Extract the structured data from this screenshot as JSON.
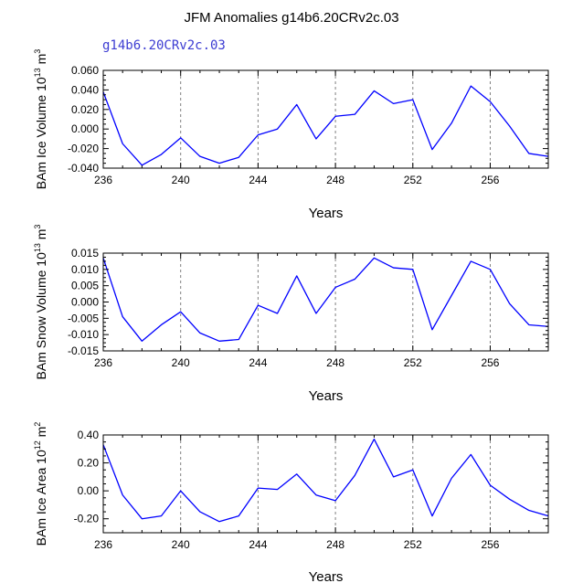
{
  "title": "JFM Anomalies g14b6.20CRv2c.03",
  "subtitle": "g14b6.20CRv2c.03",
  "colors": {
    "line": "#0000ff",
    "subtitle": "#3c3cd2",
    "axis": "#000000",
    "refline": "#808080"
  },
  "chart_data": [
    {
      "type": "line",
      "name": "ice-volume",
      "ylabel_parts": [
        "BAm Ice Volume 10",
        "13",
        " m",
        "3"
      ],
      "xlabel": "Years",
      "x": [
        236,
        237,
        238,
        239,
        240,
        241,
        242,
        243,
        244,
        245,
        246,
        247,
        248,
        249,
        250,
        251,
        252,
        253,
        254,
        255,
        256,
        257,
        258,
        259
      ],
      "values": [
        0.038,
        -0.015,
        -0.037,
        -0.026,
        -0.009,
        -0.028,
        -0.035,
        -0.029,
        -0.006,
        0.0,
        0.025,
        -0.01,
        0.013,
        0.015,
        0.039,
        0.026,
        0.03,
        -0.021,
        0.006,
        0.044,
        0.028,
        0.003,
        -0.025,
        -0.028
      ],
      "xlim": [
        236,
        259
      ],
      "ylim": [
        -0.04,
        0.06
      ],
      "yticks": [
        -0.04,
        -0.02,
        0.0,
        0.02,
        0.04,
        0.06
      ],
      "ytick_labels": [
        "-0.040",
        "-0.020",
        "0.000",
        "0.020",
        "0.040",
        "0.060"
      ],
      "xticks": [
        236,
        240,
        244,
        248,
        252,
        256
      ],
      "xtick_labels": [
        "236",
        "240",
        "244",
        "248",
        "252",
        "256"
      ],
      "reference_lines_x": [
        240,
        244,
        248,
        252,
        256
      ]
    },
    {
      "type": "line",
      "name": "snow-volume",
      "ylabel_parts": [
        "BAm Snow Volume 10",
        "13",
        " m",
        "3"
      ],
      "xlabel": "Years",
      "x": [
        236,
        237,
        238,
        239,
        240,
        241,
        242,
        243,
        244,
        245,
        246,
        247,
        248,
        249,
        250,
        251,
        252,
        253,
        254,
        255,
        256,
        257,
        258,
        259
      ],
      "values": [
        0.0135,
        -0.0045,
        -0.012,
        -0.007,
        -0.003,
        -0.0095,
        -0.012,
        -0.0115,
        -0.001,
        -0.0035,
        0.008,
        -0.0035,
        0.0045,
        0.007,
        0.0135,
        0.0105,
        0.01,
        -0.0085,
        0.002,
        0.0125,
        0.01,
        -0.0005,
        -0.007,
        -0.0075
      ],
      "xlim": [
        236,
        259
      ],
      "ylim": [
        -0.015,
        0.015
      ],
      "yticks": [
        -0.015,
        -0.01,
        -0.005,
        0.0,
        0.005,
        0.01,
        0.015
      ],
      "ytick_labels": [
        "-0.015",
        "-0.010",
        "-0.005",
        "0.000",
        "0.005",
        "0.010",
        "0.015"
      ],
      "xticks": [
        236,
        240,
        244,
        248,
        252,
        256
      ],
      "xtick_labels": [
        "236",
        "240",
        "244",
        "248",
        "252",
        "256"
      ],
      "reference_lines_x": [
        240,
        244,
        248,
        252,
        256
      ]
    },
    {
      "type": "line",
      "name": "ice-area",
      "ylabel_parts": [
        "BAm Ice Area 10",
        "12",
        " m",
        "2"
      ],
      "xlabel": "Years",
      "x": [
        236,
        237,
        238,
        239,
        240,
        241,
        242,
        243,
        244,
        245,
        246,
        247,
        248,
        249,
        250,
        251,
        252,
        253,
        254,
        255,
        256,
        257,
        258,
        259
      ],
      "values": [
        0.33,
        -0.03,
        -0.2,
        -0.18,
        0.0,
        -0.15,
        -0.22,
        -0.18,
        0.02,
        0.01,
        0.12,
        -0.03,
        -0.07,
        0.11,
        0.37,
        0.1,
        0.15,
        -0.18,
        0.09,
        0.26,
        0.04,
        -0.06,
        -0.14,
        -0.18
      ],
      "xlim": [
        236,
        259
      ],
      "ylim": [
        -0.3,
        0.4
      ],
      "yticks": [
        -0.2,
        0.0,
        0.2,
        0.4
      ],
      "ytick_labels": [
        "-0.20",
        "0.00",
        "0.20",
        "0.40"
      ],
      "xticks": [
        236,
        240,
        244,
        248,
        252,
        256
      ],
      "xtick_labels": [
        "236",
        "240",
        "244",
        "248",
        "252",
        "256"
      ],
      "reference_lines_x": [
        240,
        244,
        248,
        252,
        256
      ]
    }
  ]
}
